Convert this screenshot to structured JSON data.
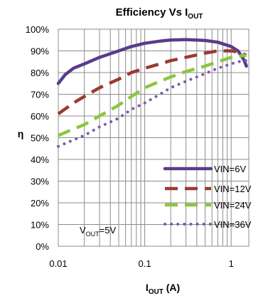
{
  "chart_data": {
    "type": "line",
    "title": {
      "main": "Efficiency Vs  I",
      "sub": "OUT"
    },
    "xlabel": {
      "main": "I",
      "sub": "OUT",
      "rest": " (A)"
    },
    "ylabel": "η",
    "x_scale": "log",
    "xlim": [
      0.01,
      1.6
    ],
    "ylim": [
      0,
      100
    ],
    "x_ticks": [
      {
        "value": 0.01,
        "label": "0.01"
      },
      {
        "value": 0.1,
        "label": "0.1"
      },
      {
        "value": 1,
        "label": "1"
      }
    ],
    "y_ticks": [
      {
        "value": 0,
        "label": "0%"
      },
      {
        "value": 10,
        "label": "10%"
      },
      {
        "value": 20,
        "label": "20%"
      },
      {
        "value": 30,
        "label": "30%"
      },
      {
        "value": 40,
        "label": "40%"
      },
      {
        "value": 50,
        "label": "50%"
      },
      {
        "value": 60,
        "label": "60%"
      },
      {
        "value": 70,
        "label": "70%"
      },
      {
        "value": 80,
        "label": "80%"
      },
      {
        "value": 90,
        "label": "90%"
      },
      {
        "value": 100,
        "label": "100%"
      }
    ],
    "grid": true,
    "legend_position": "bottom-right",
    "annotation": {
      "main": "V",
      "sub": "OUT",
      "rest": "=5V"
    },
    "series": [
      {
        "name": "VIN=6V",
        "color": "#5b3b8c",
        "style": "solid",
        "points": [
          [
            0.01,
            75
          ],
          [
            0.012,
            79
          ],
          [
            0.015,
            82
          ],
          [
            0.02,
            84
          ],
          [
            0.03,
            87
          ],
          [
            0.05,
            90
          ],
          [
            0.07,
            92
          ],
          [
            0.1,
            93.5
          ],
          [
            0.15,
            94.5
          ],
          [
            0.2,
            95
          ],
          [
            0.3,
            95.2
          ],
          [
            0.5,
            94.8
          ],
          [
            0.7,
            94
          ],
          [
            1.0,
            92
          ],
          [
            1.2,
            90
          ],
          [
            1.4,
            86
          ],
          [
            1.5,
            83
          ]
        ]
      },
      {
        "name": "VIN=12V",
        "color": "#9b3a32",
        "style": "dashed",
        "points": [
          [
            0.01,
            61
          ],
          [
            0.015,
            66
          ],
          [
            0.02,
            69
          ],
          [
            0.03,
            73
          ],
          [
            0.05,
            77
          ],
          [
            0.07,
            80
          ],
          [
            0.1,
            82
          ],
          [
            0.15,
            84
          ],
          [
            0.2,
            85.5
          ],
          [
            0.3,
            87
          ],
          [
            0.5,
            89
          ],
          [
            0.7,
            90
          ],
          [
            1.0,
            90
          ],
          [
            1.2,
            89.5
          ],
          [
            1.5,
            88
          ]
        ]
      },
      {
        "name": "VIN=24V",
        "color": "#8dc63f",
        "style": "dashed",
        "points": [
          [
            0.01,
            51
          ],
          [
            0.015,
            54
          ],
          [
            0.02,
            56
          ],
          [
            0.03,
            60
          ],
          [
            0.05,
            65
          ],
          [
            0.07,
            69
          ],
          [
            0.1,
            73
          ],
          [
            0.15,
            76
          ],
          [
            0.2,
            78
          ],
          [
            0.3,
            80.5
          ],
          [
            0.5,
            83
          ],
          [
            0.7,
            85
          ],
          [
            1.0,
            87
          ],
          [
            1.2,
            87.5
          ],
          [
            1.5,
            88
          ]
        ]
      },
      {
        "name": "VIN=36V",
        "color": "#7a5cab",
        "style": "dotted",
        "points": [
          [
            0.01,
            46
          ],
          [
            0.015,
            49
          ],
          [
            0.02,
            51
          ],
          [
            0.03,
            55
          ],
          [
            0.05,
            59
          ],
          [
            0.07,
            63
          ],
          [
            0.1,
            66
          ],
          [
            0.15,
            70
          ],
          [
            0.2,
            73
          ],
          [
            0.3,
            76
          ],
          [
            0.5,
            79.5
          ],
          [
            0.7,
            82
          ],
          [
            1.0,
            84
          ],
          [
            1.2,
            85
          ],
          [
            1.5,
            85.5
          ]
        ]
      }
    ]
  }
}
